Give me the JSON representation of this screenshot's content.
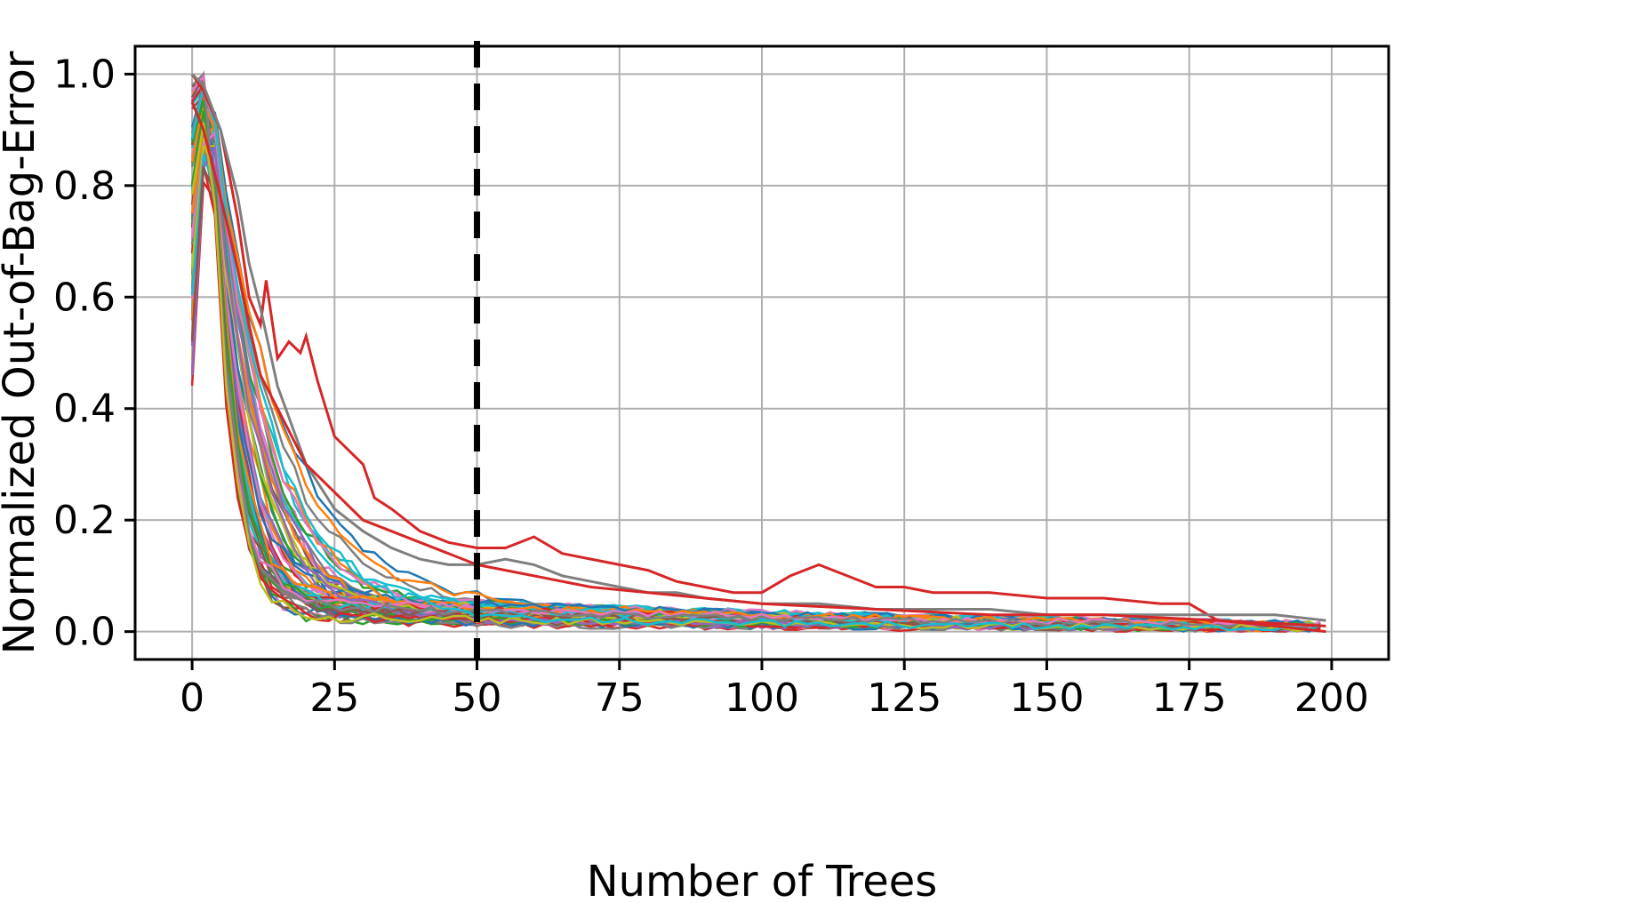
{
  "chart_data": {
    "type": "line",
    "title": "",
    "xlabel": "Number of Trees",
    "ylabel": "Normalized Out-of-Bag-Error",
    "xlim": [
      -10,
      210
    ],
    "ylim": [
      -0.05,
      1.05
    ],
    "xticks": [
      0,
      25,
      50,
      75,
      100,
      125,
      150,
      175,
      200
    ],
    "yticks": [
      0.0,
      0.2,
      0.4,
      0.6,
      0.8,
      1.0
    ],
    "xtick_labels": [
      "0",
      "25",
      "50",
      "75",
      "100",
      "125",
      "150",
      "175",
      "200"
    ],
    "ytick_labels": [
      "0.0",
      "0.2",
      "0.4",
      "0.6",
      "0.8",
      "1.0"
    ],
    "grid": true,
    "legend": "none",
    "vline": {
      "x": 50,
      "style": "dashed",
      "color": "#000000"
    },
    "series_count": 60,
    "palette": [
      "#1f77b4",
      "#ff7f0e",
      "#2ca02c",
      "#d62728",
      "#9467bd",
      "#8c564b",
      "#e377c2",
      "#7f7f7f",
      "#bcbd22",
      "#17becf"
    ],
    "series": [
      {
        "color": "#d62728",
        "x": [
          0,
          2,
          5,
          8,
          10,
          12,
          13,
          15,
          17,
          19,
          20,
          22,
          25,
          28,
          30,
          32,
          35,
          40,
          45,
          50,
          55,
          60,
          65,
          70,
          75,
          80,
          85,
          90,
          95,
          100,
          105,
          110,
          115,
          120,
          125,
          130,
          140,
          150,
          160,
          170,
          175,
          180,
          190,
          199
        ],
        "y": [
          1.0,
          0.97,
          0.9,
          0.74,
          0.6,
          0.55,
          0.63,
          0.49,
          0.52,
          0.5,
          0.53,
          0.45,
          0.35,
          0.32,
          0.3,
          0.24,
          0.22,
          0.18,
          0.16,
          0.15,
          0.15,
          0.17,
          0.14,
          0.13,
          0.12,
          0.11,
          0.09,
          0.08,
          0.07,
          0.07,
          0.1,
          0.12,
          0.1,
          0.08,
          0.08,
          0.07,
          0.07,
          0.06,
          0.06,
          0.05,
          0.05,
          0.02,
          0.01,
          0.0
        ]
      },
      {
        "color": "#7f7f7f",
        "x": [
          0,
          2,
          5,
          8,
          10,
          12,
          15,
          20,
          25,
          30,
          35,
          40,
          45,
          50,
          55,
          60,
          65,
          70,
          75,
          80,
          85,
          90,
          100,
          110,
          120,
          130,
          140,
          150,
          160,
          170,
          180,
          190,
          199
        ],
        "y": [
          1.0,
          0.98,
          0.9,
          0.78,
          0.66,
          0.58,
          0.44,
          0.3,
          0.22,
          0.18,
          0.15,
          0.13,
          0.12,
          0.12,
          0.13,
          0.12,
          0.1,
          0.09,
          0.08,
          0.07,
          0.07,
          0.06,
          0.05,
          0.05,
          0.04,
          0.04,
          0.04,
          0.03,
          0.03,
          0.03,
          0.03,
          0.03,
          0.02
        ]
      },
      {
        "color": "#d62728",
        "x": [
          0,
          2,
          5,
          8,
          10,
          12,
          15,
          18,
          20,
          25,
          30,
          35,
          40,
          45,
          50,
          55,
          60,
          70,
          80,
          90,
          100,
          120,
          140,
          160,
          180,
          199
        ],
        "y": [
          0.95,
          0.9,
          0.78,
          0.65,
          0.55,
          0.46,
          0.4,
          0.34,
          0.3,
          0.25,
          0.2,
          0.18,
          0.16,
          0.14,
          0.12,
          0.11,
          0.1,
          0.08,
          0.07,
          0.06,
          0.05,
          0.04,
          0.03,
          0.03,
          0.02,
          0.01
        ]
      }
    ]
  }
}
